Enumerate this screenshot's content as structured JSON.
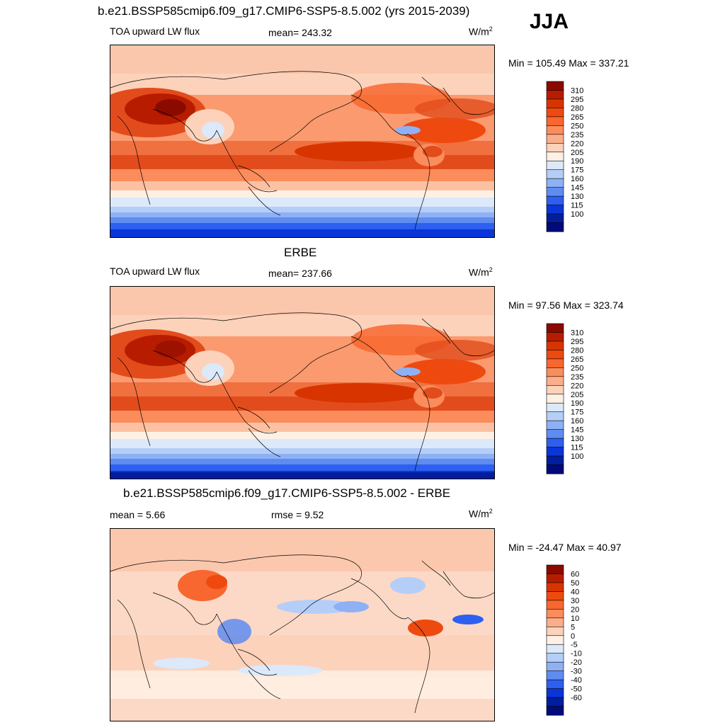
{
  "figure": {
    "main_title": "b.e21.BSSP585cmip6.f09_g17.CMIP6-SSP5-8.5.002 (yrs 2015-2039)",
    "season": "JJA"
  },
  "panels": [
    {
      "id": "model",
      "header": "",
      "left_label": "TOA upward LW flux",
      "center_label": "mean= 243.32",
      "units_base": "W/m",
      "units_sup": "2",
      "minmax": "Min = 105.49 Max = 337.21",
      "palette": "warm",
      "colorbar": {
        "labels": [
          "310",
          "295",
          "280",
          "265",
          "250",
          "235",
          "220",
          "205",
          "190",
          "175",
          "160",
          "145",
          "130",
          "115",
          "100"
        ],
        "colors": [
          "#8b0a00",
          "#b81c00",
          "#d83400",
          "#ee4a10",
          "#f8672f",
          "#fb8c5c",
          "#fcae8a",
          "#fdd2ba",
          "#fff0e4",
          "#dbe9fb",
          "#b5cef8",
          "#8eb1f5",
          "#5f8cf0",
          "#2d5ff0",
          "#0a35d8",
          "#001e9e",
          "#000a78"
        ]
      }
    },
    {
      "id": "obs",
      "header": "ERBE",
      "left_label": "TOA upward LW flux",
      "center_label": "mean= 237.66",
      "units_base": "W/m",
      "units_sup": "2",
      "minmax": "Min =  97.56 Max = 323.74",
      "palette": "warm",
      "colorbar": {
        "labels": [
          "310",
          "295",
          "280",
          "265",
          "250",
          "235",
          "220",
          "205",
          "190",
          "175",
          "160",
          "145",
          "130",
          "115",
          "100"
        ],
        "colors": [
          "#8b0a00",
          "#b81c00",
          "#d83400",
          "#ee4a10",
          "#f8672f",
          "#fb8c5c",
          "#fcae8a",
          "#fdd2ba",
          "#fff0e4",
          "#dbe9fb",
          "#b5cef8",
          "#8eb1f5",
          "#5f8cf0",
          "#2d5ff0",
          "#0a35d8",
          "#001e9e",
          "#000a78"
        ]
      }
    },
    {
      "id": "diff",
      "header": "b.e21.BSSP585cmip6.f09_g17.CMIP6-SSP5-8.5.002 - ERBE",
      "left_label": "mean =   5.66",
      "center_label": "rmse =   9.52",
      "units_base": "W/m",
      "units_sup": "2",
      "minmax": "Min = -24.47 Max =  40.97",
      "palette": "diff",
      "colorbar": {
        "labels": [
          "60",
          "50",
          "40",
          "30",
          "20",
          "10",
          "5",
          "0",
          "-5",
          "-10",
          "-20",
          "-30",
          "-40",
          "-50",
          "-60"
        ],
        "colors": [
          "#8b0a00",
          "#b81c00",
          "#d83400",
          "#ee4a10",
          "#f8672f",
          "#fb8c5c",
          "#fcae8a",
          "#fdd2ba",
          "#fff0e4",
          "#dbe9fb",
          "#b5cef8",
          "#8eb1f5",
          "#5f8cf0",
          "#2d5ff0",
          "#0a35d8",
          "#001e9e",
          "#000a78"
        ]
      }
    }
  ]
}
